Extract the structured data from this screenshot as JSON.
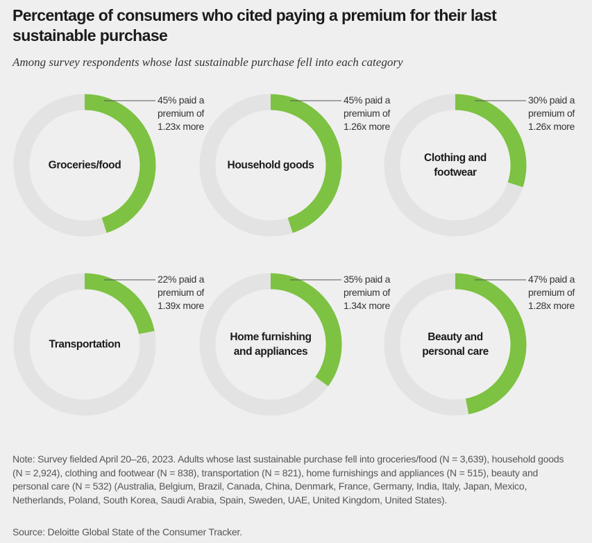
{
  "header": {
    "title": "Percentage of consumers who cited paying a premium for their last sustainable purchase",
    "subtitle": "Among survey respondents whose last sustainable purchase fell into each category"
  },
  "chart_data": [
    {
      "type": "donut",
      "title": "Groceries/food",
      "values": [
        45,
        55
      ],
      "value_labels": [
        "45% paid a premium of 1.23x more",
        null
      ],
      "colors": [
        "#7dc242",
        "#e3e3e3"
      ]
    },
    {
      "type": "donut",
      "title": "Household goods",
      "values": [
        45,
        55
      ],
      "value_labels": [
        "45% paid a premium of 1.26x more",
        null
      ],
      "colors": [
        "#7dc242",
        "#e3e3e3"
      ]
    },
    {
      "type": "donut",
      "title": "Clothing and footwear",
      "values": [
        30,
        70
      ],
      "value_labels": [
        "30% paid a premium of 1.26x more",
        null
      ],
      "colors": [
        "#7dc242",
        "#e3e3e3"
      ]
    },
    {
      "type": "donut",
      "title": "Transportation",
      "values": [
        22,
        78
      ],
      "value_labels": [
        "22% paid a premium of 1.39x more",
        null
      ],
      "colors": [
        "#7dc242",
        "#e3e3e3"
      ]
    },
    {
      "type": "donut",
      "title": "Home furnishing and appliances",
      "values": [
        35,
        65
      ],
      "value_labels": [
        "35% paid a premium of 1.34x more",
        null
      ],
      "colors": [
        "#7dc242",
        "#e3e3e3"
      ]
    },
    {
      "type": "donut",
      "title": "Beauty and personal care",
      "values": [
        47,
        53
      ],
      "value_labels": [
        "47% paid a premium of 1.28x more",
        null
      ],
      "colors": [
        "#7dc242",
        "#e3e3e3"
      ]
    }
  ],
  "footer": {
    "note": "Note: Survey fielded April 20–26, 2023. Adults whose last sustainable purchase fell into groceries/food (N = 3,639), household goods (N = 2,924), clothing and footwear (N = 838), transportation (N = 821), home furnishings and appliances (N = 515), beauty and personal care (N = 532) (Australia, Belgium, Brazil, Canada, China, Denmark, France, Germany, India, Italy, Japan, Mexico, Netherlands, Poland, South Korea, Saudi Arabia, Spain, Sweden, UAE, United Kingdom, United States).",
    "source": "Source: Deloitte Global State of the Consumer Tracker."
  }
}
